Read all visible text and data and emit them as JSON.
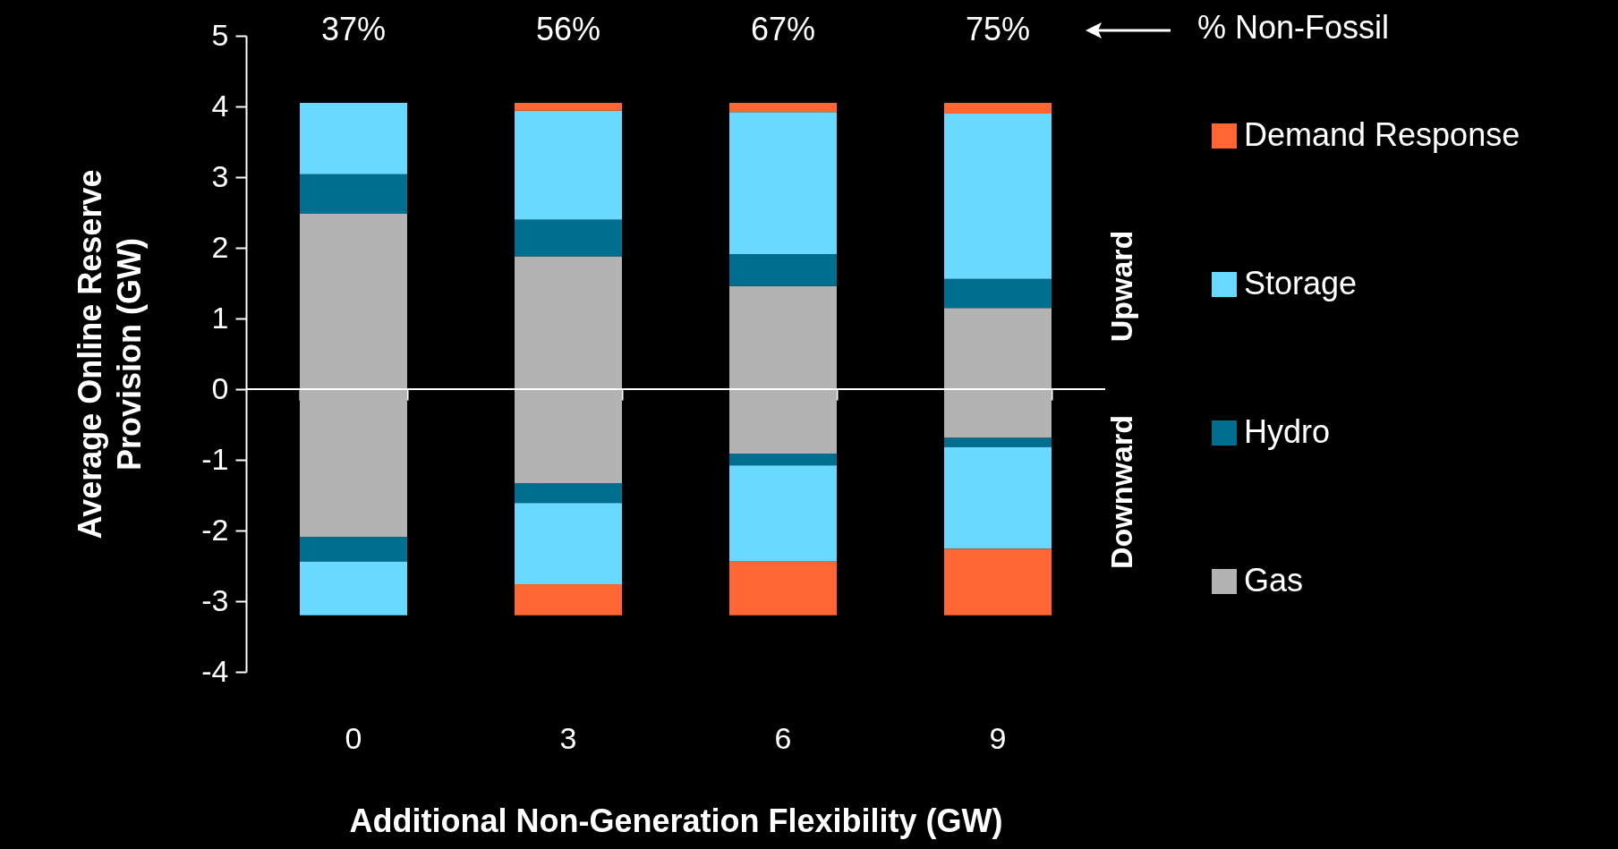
{
  "chart_data": {
    "type": "bar",
    "stacked": true,
    "xlabel": "Additional Non-Generation Flexibility (GW)",
    "ylabel": "Average Online Reserve\nProvision (GW)",
    "categories": [
      "0",
      "3",
      "6",
      "9"
    ],
    "ylim": [
      -4,
      5
    ],
    "yticks": [
      -4,
      -3,
      -2,
      -1,
      0,
      1,
      2,
      3,
      4,
      5
    ],
    "grid": false,
    "ref_lines": [
      {
        "axis": "y",
        "value": 0,
        "color": "#ffffff"
      }
    ],
    "legend": "right",
    "series": [
      {
        "name": "Gas",
        "color": "#b3b3b3",
        "values": [
          2.48,
          1.88,
          1.46,
          1.15
        ]
      },
      {
        "name": "Hydro",
        "color": "#006e8f",
        "values": [
          0.56,
          0.52,
          0.45,
          0.41
        ]
      },
      {
        "name": "Storage",
        "color": "#6ad9ff",
        "values": [
          1.01,
          1.54,
          2.01,
          2.34
        ]
      },
      {
        "name": "Demand Response",
        "color": "#ff6633",
        "values": [
          null,
          0.11,
          0.13,
          0.15
        ]
      },
      {
        "color": "#b3b3b3",
        "values": [
          -2.09,
          -1.33,
          -0.91,
          -0.69
        ]
      },
      {
        "color": "#006e8f",
        "values": [
          -0.35,
          -0.28,
          -0.17,
          -0.13
        ]
      },
      {
        "color": "#6ad9ff",
        "values": [
          -0.76,
          -1.15,
          -1.36,
          -1.44
        ]
      },
      {
        "color": "#ff6633",
        "values": [
          null,
          -0.44,
          -0.76,
          -0.94
        ]
      }
    ],
    "annotations": [
      "37%",
      "56%",
      "67%",
      "75%",
      "% Non-Fossil",
      "Upward",
      "Downward"
    ]
  }
}
